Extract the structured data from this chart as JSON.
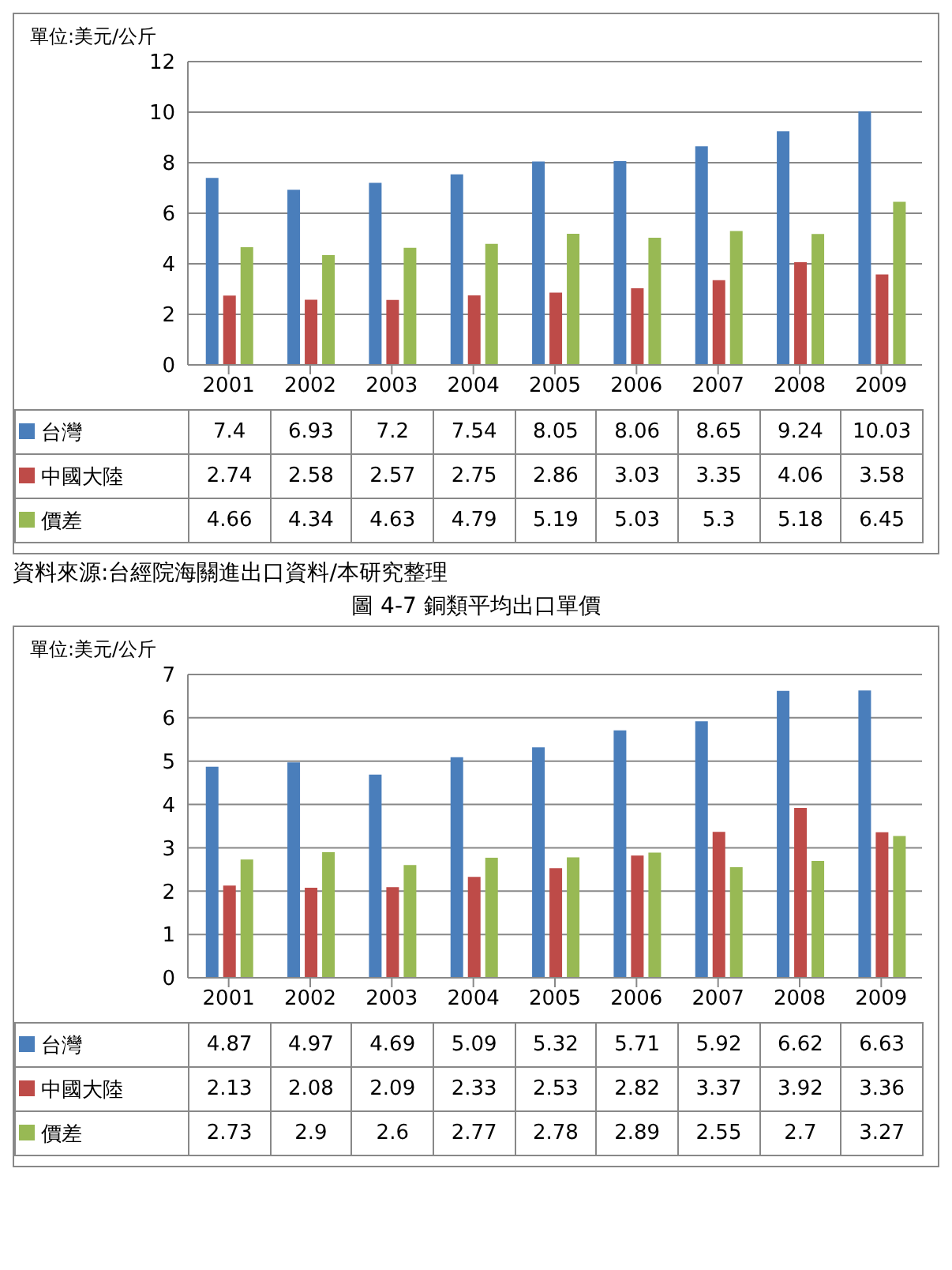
{
  "chart_data": [
    {
      "type": "bar",
      "ylabel": "單位:美元/公斤",
      "categories": [
        "2001",
        "2002",
        "2003",
        "2004",
        "2005",
        "2006",
        "2007",
        "2008",
        "2009"
      ],
      "series": [
        {
          "name": "台灣",
          "color": "#4a7ebb",
          "values": [
            7.4,
            6.93,
            7.2,
            7.54,
            8.05,
            8.06,
            8.65,
            9.24,
            10.03
          ]
        },
        {
          "name": "中國大陸",
          "color": "#be4b48",
          "values": [
            2.74,
            2.58,
            2.57,
            2.75,
            2.86,
            3.03,
            3.35,
            4.06,
            3.58
          ]
        },
        {
          "name": "價差",
          "color": "#98b954",
          "values": [
            4.66,
            4.34,
            4.63,
            4.79,
            5.19,
            5.03,
            5.3,
            5.18,
            6.45
          ]
        }
      ],
      "ylim": [
        0,
        12
      ],
      "yticks": [
        0,
        2,
        4,
        6,
        8,
        10,
        12
      ],
      "grid": "y",
      "legend": "bottom",
      "data_labels": true,
      "annotations": [
        "資料來源:台經院海關進出口資料/本研究整理",
        "圖 4-7 銅類平均出口單價"
      ]
    },
    {
      "type": "bar",
      "ylabel": "單位:美元/公斤",
      "categories": [
        "2001",
        "2002",
        "2003",
        "2004",
        "2005",
        "2006",
        "2007",
        "2008",
        "2009"
      ],
      "series": [
        {
          "name": "台灣",
          "color": "#4a7ebb",
          "values": [
            4.87,
            4.97,
            4.69,
            5.09,
            5.32,
            5.71,
            5.92,
            6.62,
            6.63
          ]
        },
        {
          "name": "中國大陸",
          "color": "#be4b48",
          "values": [
            2.13,
            2.08,
            2.09,
            2.33,
            2.53,
            2.82,
            3.37,
            3.92,
            3.36
          ]
        },
        {
          "name": "價差",
          "color": "#98b954",
          "values": [
            2.73,
            2.9,
            2.6,
            2.77,
            2.78,
            2.89,
            2.55,
            2.7,
            3.27
          ]
        }
      ],
      "ylim": [
        0,
        7
      ],
      "yticks": [
        0,
        1,
        2,
        3,
        4,
        5,
        6,
        7
      ],
      "grid": "y",
      "legend": "bottom",
      "data_labels": true
    }
  ]
}
